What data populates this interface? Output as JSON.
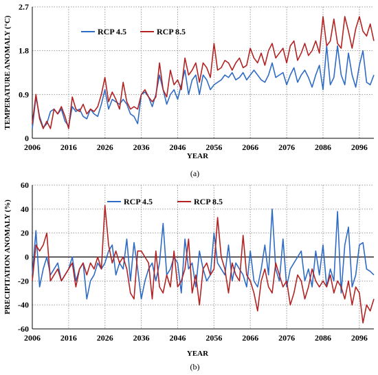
{
  "chart_data": [
    {
      "type": "line",
      "caption": "(a)",
      "xlabel": "YEAR",
      "ylabel": "TEMPERATURE ANOMALY (°C)",
      "xlim": [
        2006,
        2100
      ],
      "ylim": [
        0,
        2.7
      ],
      "xticks": [
        "2006",
        "2016",
        "2026",
        "2036",
        "2046",
        "2056",
        "2066",
        "2076",
        "2086",
        "2096"
      ],
      "yticks": [
        "0",
        "0.9",
        "1.8",
        "2.7"
      ],
      "grid": true,
      "legend_position": "top-left",
      "series": [
        {
          "name": "RCP 4.5",
          "color": "#2e6bc4",
          "x": [
            2006,
            2007,
            2008,
            2009,
            2010,
            2011,
            2012,
            2013,
            2014,
            2015,
            2016,
            2017,
            2018,
            2019,
            2020,
            2021,
            2022,
            2023,
            2024,
            2025,
            2026,
            2027,
            2028,
            2029,
            2030,
            2031,
            2032,
            2033,
            2034,
            2035,
            2036,
            2037,
            2038,
            2039,
            2040,
            2041,
            2042,
            2043,
            2044,
            2045,
            2046,
            2047,
            2048,
            2049,
            2050,
            2051,
            2052,
            2053,
            2054,
            2055,
            2056,
            2057,
            2058,
            2059,
            2060,
            2061,
            2062,
            2063,
            2064,
            2065,
            2066,
            2067,
            2068,
            2069,
            2070,
            2071,
            2072,
            2073,
            2074,
            2075,
            2076,
            2077,
            2078,
            2079,
            2080,
            2081,
            2082,
            2083,
            2084,
            2085,
            2086,
            2087,
            2088,
            2089,
            2090,
            2091,
            2092,
            2093,
            2094,
            2095,
            2096,
            2097,
            2098,
            2099,
            2100
          ],
          "values": [
            0.2,
            0.85,
            0.45,
            0.22,
            0.3,
            0.55,
            0.6,
            0.5,
            0.6,
            0.35,
            0.25,
            0.65,
            0.55,
            0.6,
            0.45,
            0.4,
            0.6,
            0.5,
            0.45,
            0.7,
            1.0,
            0.6,
            0.8,
            0.75,
            0.7,
            0.8,
            0.7,
            0.5,
            0.45,
            0.3,
            0.9,
            0.95,
            0.85,
            0.65,
            0.9,
            1.3,
            1.0,
            0.7,
            0.9,
            1.0,
            0.8,
            1.1,
            1.4,
            0.9,
            1.2,
            1.3,
            0.9,
            1.3,
            1.2,
            1.0,
            1.1,
            1.15,
            1.2,
            1.3,
            1.25,
            1.35,
            1.2,
            1.25,
            1.35,
            1.2,
            1.3,
            1.4,
            1.3,
            1.2,
            1.15,
            1.3,
            1.55,
            1.25,
            1.3,
            1.35,
            1.1,
            1.3,
            1.45,
            1.15,
            1.3,
            1.4,
            1.25,
            1.05,
            1.3,
            1.5,
            1.0,
            1.9,
            1.1,
            1.25,
            1.9,
            1.3,
            1.1,
            1.75,
            1.3,
            1.05,
            1.5,
            1.8,
            1.15,
            1.1,
            1.3
          ]
        },
        {
          "name": "RCP 8.5",
          "color": "#b22222",
          "x": [
            2006,
            2007,
            2008,
            2009,
            2010,
            2011,
            2012,
            2013,
            2014,
            2015,
            2016,
            2017,
            2018,
            2019,
            2020,
            2021,
            2022,
            2023,
            2024,
            2025,
            2026,
            2027,
            2028,
            2029,
            2030,
            2031,
            2032,
            2033,
            2034,
            2035,
            2036,
            2037,
            2038,
            2039,
            2040,
            2041,
            2042,
            2043,
            2044,
            2045,
            2046,
            2047,
            2048,
            2049,
            2050,
            2051,
            2052,
            2053,
            2054,
            2055,
            2056,
            2057,
            2058,
            2059,
            2060,
            2061,
            2062,
            2063,
            2064,
            2065,
            2066,
            2067,
            2068,
            2069,
            2070,
            2071,
            2072,
            2073,
            2074,
            2075,
            2076,
            2077,
            2078,
            2079,
            2080,
            2081,
            2082,
            2083,
            2084,
            2085,
            2086,
            2087,
            2088,
            2089,
            2090,
            2091,
            2092,
            2093,
            2094,
            2095,
            2096,
            2097,
            2098,
            2099,
            2100
          ],
          "values": [
            0.3,
            0.9,
            0.4,
            0.2,
            0.35,
            0.2,
            0.6,
            0.5,
            0.65,
            0.45,
            0.2,
            0.85,
            0.6,
            0.55,
            0.7,
            0.5,
            0.6,
            0.55,
            0.65,
            0.9,
            1.25,
            0.75,
            0.95,
            0.8,
            0.6,
            1.15,
            0.75,
            0.6,
            0.65,
            0.6,
            0.9,
            1.0,
            0.85,
            0.75,
            0.85,
            1.55,
            1.0,
            0.85,
            1.4,
            1.1,
            1.2,
            1.0,
            1.65,
            1.3,
            1.4,
            1.55,
            1.15,
            1.55,
            1.45,
            1.25,
            1.95,
            1.4,
            1.45,
            1.6,
            1.55,
            1.4,
            1.55,
            1.65,
            1.45,
            1.5,
            1.85,
            1.65,
            1.55,
            1.75,
            1.5,
            1.8,
            1.95,
            1.65,
            1.75,
            1.85,
            1.55,
            1.9,
            2.0,
            1.6,
            1.75,
            1.95,
            1.7,
            1.8,
            2.0,
            1.75,
            2.5,
            1.9,
            2.0,
            2.45,
            1.95,
            1.85,
            2.5,
            2.2,
            1.85,
            2.25,
            2.5,
            2.2,
            2.1,
            2.35,
            2.0
          ]
        }
      ]
    },
    {
      "type": "line",
      "caption": "(b)",
      "xlabel": "YEAR",
      "ylabel": "PRECIPITATION ANOMALY (%)",
      "xlim": [
        2006,
        2100
      ],
      "ylim": [
        -60,
        60
      ],
      "xticks": [
        "2006",
        "2016",
        "2026",
        "2036",
        "2046",
        "2056",
        "2066",
        "2076",
        "2086",
        "2096"
      ],
      "yticks": [
        "-60",
        "-40",
        "-20",
        "0",
        "20",
        "40",
        "60"
      ],
      "grid": true,
      "legend_position": "top-center",
      "series": [
        {
          "name": "RCP 4.5",
          "color": "#2e6bc4",
          "x": [
            2006,
            2007,
            2008,
            2009,
            2010,
            2011,
            2012,
            2013,
            2014,
            2015,
            2016,
            2017,
            2018,
            2019,
            2020,
            2021,
            2022,
            2023,
            2024,
            2025,
            2026,
            2027,
            2028,
            2029,
            2030,
            2031,
            2032,
            2033,
            2034,
            2035,
            2036,
            2037,
            2038,
            2039,
            2040,
            2041,
            2042,
            2043,
            2044,
            2045,
            2046,
            2047,
            2048,
            2049,
            2050,
            2051,
            2052,
            2053,
            2054,
            2055,
            2056,
            2057,
            2058,
            2059,
            2060,
            2061,
            2062,
            2063,
            2064,
            2065,
            2066,
            2067,
            2068,
            2069,
            2070,
            2071,
            2072,
            2073,
            2074,
            2075,
            2076,
            2077,
            2078,
            2079,
            2080,
            2081,
            2082,
            2083,
            2084,
            2085,
            2086,
            2087,
            2088,
            2089,
            2090,
            2091,
            2092,
            2093,
            2094,
            2095,
            2096,
            2097,
            2098,
            2099,
            2100
          ],
          "values": [
            -15,
            22,
            -25,
            -10,
            0,
            -15,
            -10,
            -5,
            -20,
            -15,
            -10,
            0,
            -20,
            -10,
            -5,
            -35,
            -20,
            -15,
            -5,
            -10,
            -5,
            5,
            10,
            -15,
            -5,
            -10,
            15,
            -20,
            12,
            -10,
            -35,
            -20,
            -10,
            -5,
            -20,
            -5,
            28,
            -15,
            -10,
            0,
            -5,
            -30,
            15,
            -10,
            -5,
            -25,
            5,
            -10,
            -20,
            -15,
            20,
            -5,
            -10,
            -15,
            10,
            -20,
            -5,
            -10,
            -15,
            -25,
            5,
            -20,
            -25,
            -10,
            10,
            -15,
            40,
            -10,
            -20,
            15,
            -25,
            -10,
            -5,
            0,
            5,
            -20,
            -10,
            -25,
            5,
            -15,
            10,
            -25,
            -10,
            -20,
            38,
            -30,
            10,
            25,
            -25,
            -15,
            10,
            12,
            -10,
            -12,
            -15
          ]
        },
        {
          "name": "RCP 8.5",
          "color": "#b22222",
          "x": [
            2006,
            2007,
            2008,
            2009,
            2010,
            2011,
            2012,
            2013,
            2014,
            2015,
            2016,
            2017,
            2018,
            2019,
            2020,
            2021,
            2022,
            2023,
            2024,
            2025,
            2026,
            2027,
            2028,
            2029,
            2030,
            2031,
            2032,
            2033,
            2034,
            2035,
            2036,
            2037,
            2038,
            2039,
            2040,
            2041,
            2042,
            2043,
            2044,
            2045,
            2046,
            2047,
            2048,
            2049,
            2050,
            2051,
            2052,
            2053,
            2054,
            2055,
            2056,
            2057,
            2058,
            2059,
            2060,
            2061,
            2062,
            2063,
            2064,
            2065,
            2066,
            2067,
            2068,
            2069,
            2070,
            2071,
            2072,
            2073,
            2074,
            2075,
            2076,
            2077,
            2078,
            2079,
            2080,
            2081,
            2082,
            2083,
            2084,
            2085,
            2086,
            2087,
            2088,
            2089,
            2090,
            2091,
            2092,
            2093,
            2094,
            2095,
            2096,
            2097,
            2098,
            2099,
            2100
          ],
          "values": [
            -20,
            10,
            5,
            10,
            20,
            -20,
            -15,
            -10,
            -20,
            -15,
            -10,
            -5,
            -25,
            -10,
            -5,
            -15,
            -5,
            -10,
            0,
            -10,
            43,
            10,
            -5,
            5,
            -5,
            0,
            -10,
            -30,
            -35,
            5,
            5,
            0,
            -5,
            -35,
            5,
            -25,
            -30,
            -15,
            -25,
            5,
            -25,
            -20,
            -10,
            15,
            -30,
            -15,
            -40,
            -10,
            -5,
            -15,
            -10,
            33,
            0,
            -10,
            -30,
            -5,
            -15,
            -20,
            18,
            -15,
            -20,
            -30,
            -45,
            -20,
            -10,
            -25,
            -30,
            -5,
            -15,
            -25,
            -20,
            -40,
            -30,
            -15,
            -20,
            -35,
            -25,
            -10,
            -20,
            -25,
            -20,
            -25,
            -15,
            -30,
            -20,
            -25,
            -35,
            -20,
            -40,
            -25,
            -30,
            -55,
            -40,
            -45,
            -35
          ]
        }
      ]
    }
  ]
}
